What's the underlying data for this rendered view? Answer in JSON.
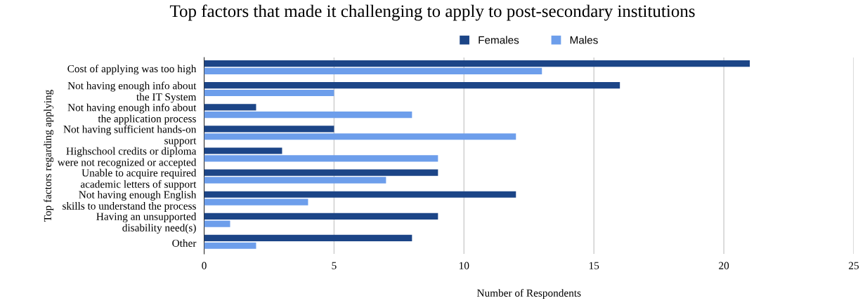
{
  "chart_data": {
    "type": "bar",
    "orientation": "horizontal",
    "title": "Top factors that made it challenging to apply to post-secondary institutions",
    "xlabel": "Number of Respondents",
    "ylabel": "Top factors regarding applying",
    "categories": [
      "Cost of applying was too high",
      "Not having enough info about\nthe IT System",
      "Not having enough info about\nthe application process",
      "Not having sufficient hands-on\nsupport",
      "Highschool credits or diploma\nwere not recognized or accepted",
      "Unable to acquire required\nacademic letters of support",
      "Not having enough English\nskills to understand the process",
      "Having an unsupported\ndisability need(s)",
      "Other"
    ],
    "series": [
      {
        "name": "Females",
        "color": "#1c4587",
        "values": [
          21,
          16,
          2,
          5,
          3,
          9,
          12,
          9,
          8
        ]
      },
      {
        "name": "Males",
        "color": "#6d9eeb",
        "values": [
          13,
          5,
          8,
          12,
          9,
          7,
          4,
          1,
          2
        ]
      }
    ],
    "xlim": [
      0,
      25
    ],
    "xticks": [
      0,
      5,
      10,
      15,
      20,
      25
    ],
    "grid": "x",
    "legend": "top"
  }
}
